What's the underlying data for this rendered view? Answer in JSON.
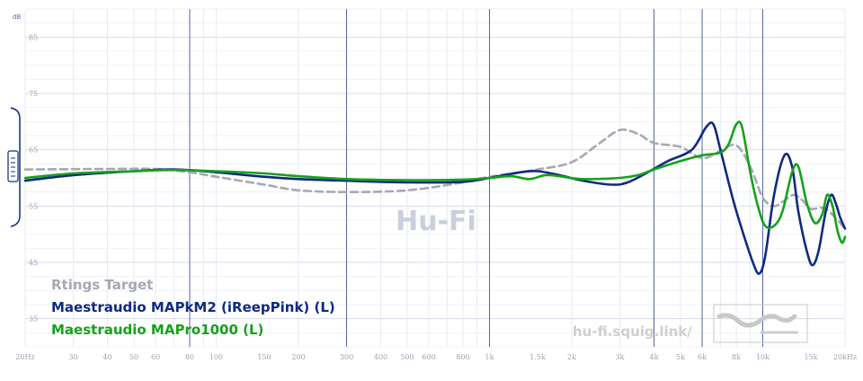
{
  "chart_data": {
    "type": "line",
    "title": "",
    "xlabel": "",
    "ylabel": "",
    "x_scale": "log",
    "xlim": [
      20,
      20000
    ],
    "ylim": [
      30,
      90
    ],
    "unit_label": "dB",
    "x_ticks": [
      {
        "v": 20,
        "label": "20Hz"
      },
      {
        "v": 30,
        "label": "30"
      },
      {
        "v": 40,
        "label": "40"
      },
      {
        "v": 50,
        "label": "50"
      },
      {
        "v": 60,
        "label": "60"
      },
      {
        "v": 80,
        "label": "80",
        "major": true
      },
      {
        "v": 100,
        "label": "100"
      },
      {
        "v": 150,
        "label": "150"
      },
      {
        "v": 200,
        "label": "200"
      },
      {
        "v": 300,
        "label": "300",
        "major": true
      },
      {
        "v": 400,
        "label": "400"
      },
      {
        "v": 500,
        "label": "500"
      },
      {
        "v": 600,
        "label": "600"
      },
      {
        "v": 800,
        "label": "800"
      },
      {
        "v": 1000,
        "label": "1k",
        "major": true
      },
      {
        "v": 1500,
        "label": "1.5k"
      },
      {
        "v": 2000,
        "label": "2k"
      },
      {
        "v": 3000,
        "label": "3k"
      },
      {
        "v": 4000,
        "label": "4k",
        "major": true
      },
      {
        "v": 5000,
        "label": "5k"
      },
      {
        "v": 6000,
        "label": "6k",
        "major": true
      },
      {
        "v": 8000,
        "label": "8k"
      },
      {
        "v": 10000,
        "label": "10k",
        "major": true
      },
      {
        "v": 15000,
        "label": "15k"
      },
      {
        "v": 20000,
        "label": "20kHz"
      }
    ],
    "y_ticks": [
      {
        "v": 85,
        "label": "85"
      },
      {
        "v": 75,
        "label": "75"
      },
      {
        "v": 65,
        "label": "65"
      },
      {
        "v": 55,
        "label": "55"
      },
      {
        "v": 45,
        "label": "45"
      },
      {
        "v": 35,
        "label": "35"
      }
    ],
    "grid": true,
    "legend_position": "bottom-left",
    "series": [
      {
        "name": "Rtings Target",
        "color": "#a8a8b4",
        "dashed": true,
        "points": [
          [
            20,
            61.5
          ],
          [
            40,
            61.6
          ],
          [
            60,
            61.6
          ],
          [
            80,
            61.0
          ],
          [
            100,
            60.2
          ],
          [
            150,
            58.8
          ],
          [
            200,
            57.8
          ],
          [
            300,
            57.5
          ],
          [
            500,
            57.8
          ],
          [
            800,
            59.2
          ],
          [
            1000,
            60.2
          ],
          [
            1500,
            61.5
          ],
          [
            2000,
            62.8
          ],
          [
            2500,
            66.0
          ],
          [
            3000,
            68.5
          ],
          [
            3500,
            67.8
          ],
          [
            4000,
            66.2
          ],
          [
            5000,
            65.5
          ],
          [
            6000,
            63.5
          ],
          [
            7000,
            64.8
          ],
          [
            8000,
            65.8
          ],
          [
            9000,
            62.0
          ],
          [
            10000,
            56.5
          ],
          [
            11000,
            55.0
          ],
          [
            12000,
            56.0
          ],
          [
            13000,
            57.0
          ],
          [
            14000,
            56.0
          ],
          [
            15000,
            54.5
          ],
          [
            17000,
            54.5
          ],
          [
            20000,
            51.0
          ]
        ]
      },
      {
        "name": "Maestraudio MAPkM2 (iReepPink) (L)",
        "color": "#0f2a80",
        "dashed": false,
        "points": [
          [
            20,
            59.5
          ],
          [
            30,
            60.5
          ],
          [
            50,
            61.2
          ],
          [
            70,
            61.5
          ],
          [
            100,
            61.0
          ],
          [
            150,
            60.2
          ],
          [
            200,
            59.8
          ],
          [
            300,
            59.5
          ],
          [
            500,
            59.2
          ],
          [
            800,
            59.3
          ],
          [
            1000,
            60.0
          ],
          [
            1300,
            61.0
          ],
          [
            1500,
            61.2
          ],
          [
            1800,
            60.5
          ],
          [
            2200,
            59.5
          ],
          [
            2800,
            58.8
          ],
          [
            3200,
            59.2
          ],
          [
            3800,
            61.0
          ],
          [
            4500,
            63.0
          ],
          [
            5500,
            65.0
          ],
          [
            6200,
            69.0
          ],
          [
            6600,
            69.5
          ],
          [
            7000,
            65.0
          ],
          [
            7800,
            56.0
          ],
          [
            8500,
            50.0
          ],
          [
            9200,
            45.0
          ],
          [
            9700,
            43.0
          ],
          [
            10200,
            46.0
          ],
          [
            11000,
            57.0
          ],
          [
            12000,
            64.0
          ],
          [
            12800,
            62.0
          ],
          [
            13500,
            54.0
          ],
          [
            14500,
            47.0
          ],
          [
            15200,
            44.5
          ],
          [
            16000,
            47.0
          ],
          [
            17000,
            54.0
          ],
          [
            17800,
            57.0
          ],
          [
            18500,
            55.5
          ],
          [
            19200,
            53.0
          ],
          [
            20000,
            51.0
          ]
        ]
      },
      {
        "name": "Maestraudio MAPro1000 (L)",
        "color": "#16a11a",
        "dashed": false,
        "points": [
          [
            20,
            60.0
          ],
          [
            30,
            60.8
          ],
          [
            50,
            61.2
          ],
          [
            70,
            61.4
          ],
          [
            100,
            61.2
          ],
          [
            150,
            60.8
          ],
          [
            200,
            60.3
          ],
          [
            300,
            59.8
          ],
          [
            500,
            59.6
          ],
          [
            800,
            59.7
          ],
          [
            1000,
            60.0
          ],
          [
            1200,
            60.3
          ],
          [
            1400,
            59.8
          ],
          [
            1600,
            60.5
          ],
          [
            1800,
            60.3
          ],
          [
            2200,
            59.8
          ],
          [
            3000,
            60.0
          ],
          [
            3500,
            60.5
          ],
          [
            4000,
            61.5
          ],
          [
            5000,
            63.0
          ],
          [
            6000,
            64.0
          ],
          [
            7000,
            64.5
          ],
          [
            7500,
            66.0
          ],
          [
            8000,
            69.5
          ],
          [
            8400,
            69.0
          ],
          [
            9000,
            61.0
          ],
          [
            9600,
            55.0
          ],
          [
            10200,
            51.5
          ],
          [
            11000,
            51.5
          ],
          [
            11800,
            54.0
          ],
          [
            12800,
            61.0
          ],
          [
            13500,
            62.0
          ],
          [
            14500,
            55.5
          ],
          [
            15500,
            52.0
          ],
          [
            16500,
            53.5
          ],
          [
            17200,
            57.0
          ],
          [
            18000,
            55.0
          ],
          [
            18800,
            50.5
          ],
          [
            19500,
            48.5
          ],
          [
            20000,
            49.5
          ]
        ]
      }
    ]
  },
  "watermark": "Hu-Fi",
  "site_url": "hu-fi.squig.link/"
}
